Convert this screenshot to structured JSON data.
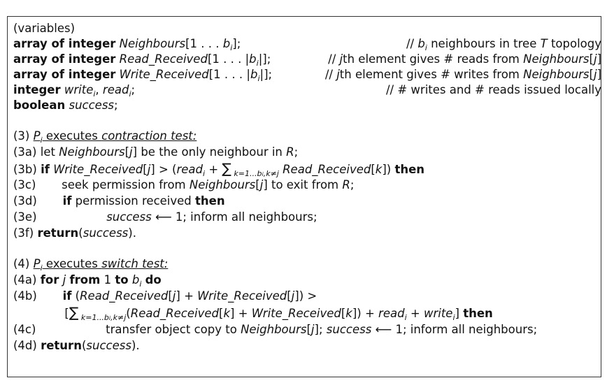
{
  "figure": {
    "variables": {
      "header": "(variables)",
      "lines": [
        {
          "kw": "array of integer",
          "expr": "Neighbours[1 . . . b",
          "sub": "i",
          "tail": "];",
          "comment": "// b_i neighbours in tree T topology"
        },
        {
          "kw": "array of integer",
          "expr": "Read_Received[1 . . . |b",
          "sub": "i",
          "tail": "|];",
          "comment": "// jth element gives # reads from Neighbours[j]"
        },
        {
          "kw": "array of integer",
          "expr": "Write_Received[1 . . . |b",
          "sub": "i",
          "tail": "|];",
          "comment": "// jth element gives # writes from Neighbours[j]"
        },
        {
          "kw": "integer",
          "expr": "write",
          "sub": "i",
          "tail": ", read_i;",
          "comment": "// # writes and # reads issued locally"
        },
        {
          "kw": "boolean",
          "expr": "success",
          "sub": "",
          "tail": ";",
          "comment": ""
        }
      ]
    },
    "contraction": {
      "title_num": "(3)",
      "title_pi": "P",
      "title_sub": "i",
      "title_text": "executes",
      "title_under": "contraction test:",
      "steps": [
        "(3a) let Neighbours[j] be the only neighbour in R;",
        "(3b) if Write_Received[j] > (read_i + Σ k=1...b_i,k≠j Read_Received[k]) then",
        "(3c)        seek permission from Neighbours[j] to exit from R;",
        "(3d)        if permission received then",
        "(3e)                  success ⟵ 1; inform all neighbours;",
        "(3f) return(success)."
      ]
    },
    "switch": {
      "title_num": "(4)",
      "title_pi": "P",
      "title_sub": "i",
      "title_text": "executes",
      "title_under": "switch test:",
      "steps": [
        "(4a) for j from 1 to b_i do",
        "(4b)        if (Read_Received[j] + Write_Received[j]) >",
        "               [Σ k=1...b_i,k≠j (Read_Received[k] + Write_Received[k]) + read_i + write_i] then",
        "(4c)                  transfer object copy to Neighbours[j]; success ⟵ 1; inform all neighbours;",
        "(4d) return(success)."
      ]
    }
  }
}
